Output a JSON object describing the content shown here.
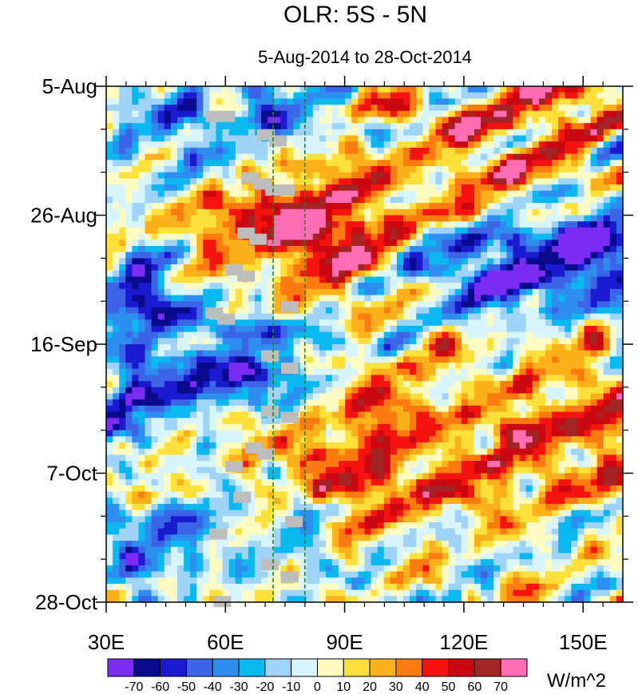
{
  "chart_data": {
    "type": "heatmap",
    "title": "OLR: 5S - 5N",
    "subtitle": "5-Aug-2014 to 28-Oct-2014",
    "x_ticks": [
      "30E",
      "60E",
      "90E",
      "120E",
      "150E"
    ],
    "x_tick_values": [
      30,
      60,
      90,
      120,
      150
    ],
    "x_range": [
      30,
      160
    ],
    "y_ticks": [
      "5-Aug",
      "26-Aug",
      "16-Sep",
      "7-Oct",
      "28-Oct"
    ],
    "y_tick_days": [
      0,
      21,
      42,
      63,
      84
    ],
    "y_range_days": [
      0,
      84
    ],
    "reference_lines_lon": [
      72,
      80
    ],
    "colorbar": {
      "label": "W/m^2",
      "tick_labels": [
        "-70",
        "-60",
        "-50",
        "-40",
        "-30",
        "-20",
        "-10",
        "0",
        "10",
        "20",
        "30",
        "40",
        "50",
        "60",
        "70"
      ],
      "levels": [
        -80,
        -70,
        -60,
        -50,
        -40,
        -30,
        -20,
        -10,
        0,
        10,
        20,
        30,
        40,
        50,
        60,
        70,
        80
      ],
      "colors": [
        "#7b2cf2",
        "#0a0a8c",
        "#1a1ad0",
        "#3c64e6",
        "#2e8ef0",
        "#0cb8f0",
        "#9fd3f7",
        "#d8f5fb",
        "#fefbc2",
        "#fde03c",
        "#fcb01c",
        "#fc7a10",
        "#f5130f",
        "#c90812",
        "#a32424",
        "#ff6eb4"
      ]
    },
    "anomaly_features": [
      {
        "name": "eastward-positive-band",
        "lon0": 80,
        "day0": 30,
        "lon1": 160,
        "day1": 0,
        "amp": 35,
        "width": 10
      },
      {
        "name": "warm-core-late-aug",
        "lon0": 85,
        "day0": 30,
        "lon1": 92,
        "day1": 28,
        "amp": 45,
        "width": 6
      },
      {
        "name": "warm-pre-aug-blob",
        "lon0": 62,
        "day0": 24,
        "lon1": 70,
        "day1": 23,
        "amp": 45,
        "width": 5
      },
      {
        "name": "cold-sep-band",
        "lon0": 30,
        "day0": 35,
        "lon1": 160,
        "day1": 25,
        "amp": -40,
        "width": 6
      },
      {
        "name": "cold-pacific-late-aug",
        "lon0": 130,
        "day0": 32,
        "lon1": 155,
        "day1": 28,
        "amp": -40,
        "width": 5
      },
      {
        "name": "warm-oct-band",
        "lon0": 70,
        "day0": 65,
        "lon1": 160,
        "day1": 55,
        "amp": 35,
        "width": 8
      },
      {
        "name": "cold-sep-oct-band",
        "lon0": 35,
        "day0": 50,
        "lon1": 75,
        "day1": 45,
        "amp": -45,
        "width": 5
      },
      {
        "name": "cold-late-oct",
        "lon0": 40,
        "day0": 75,
        "lon1": 75,
        "day1": 70,
        "amp": -40,
        "width": 5
      },
      {
        "name": "cold-early-aug-west",
        "lon0": 40,
        "day0": 8,
        "lon1": 75,
        "day1": 2,
        "amp": -35,
        "width": 6
      }
    ]
  }
}
